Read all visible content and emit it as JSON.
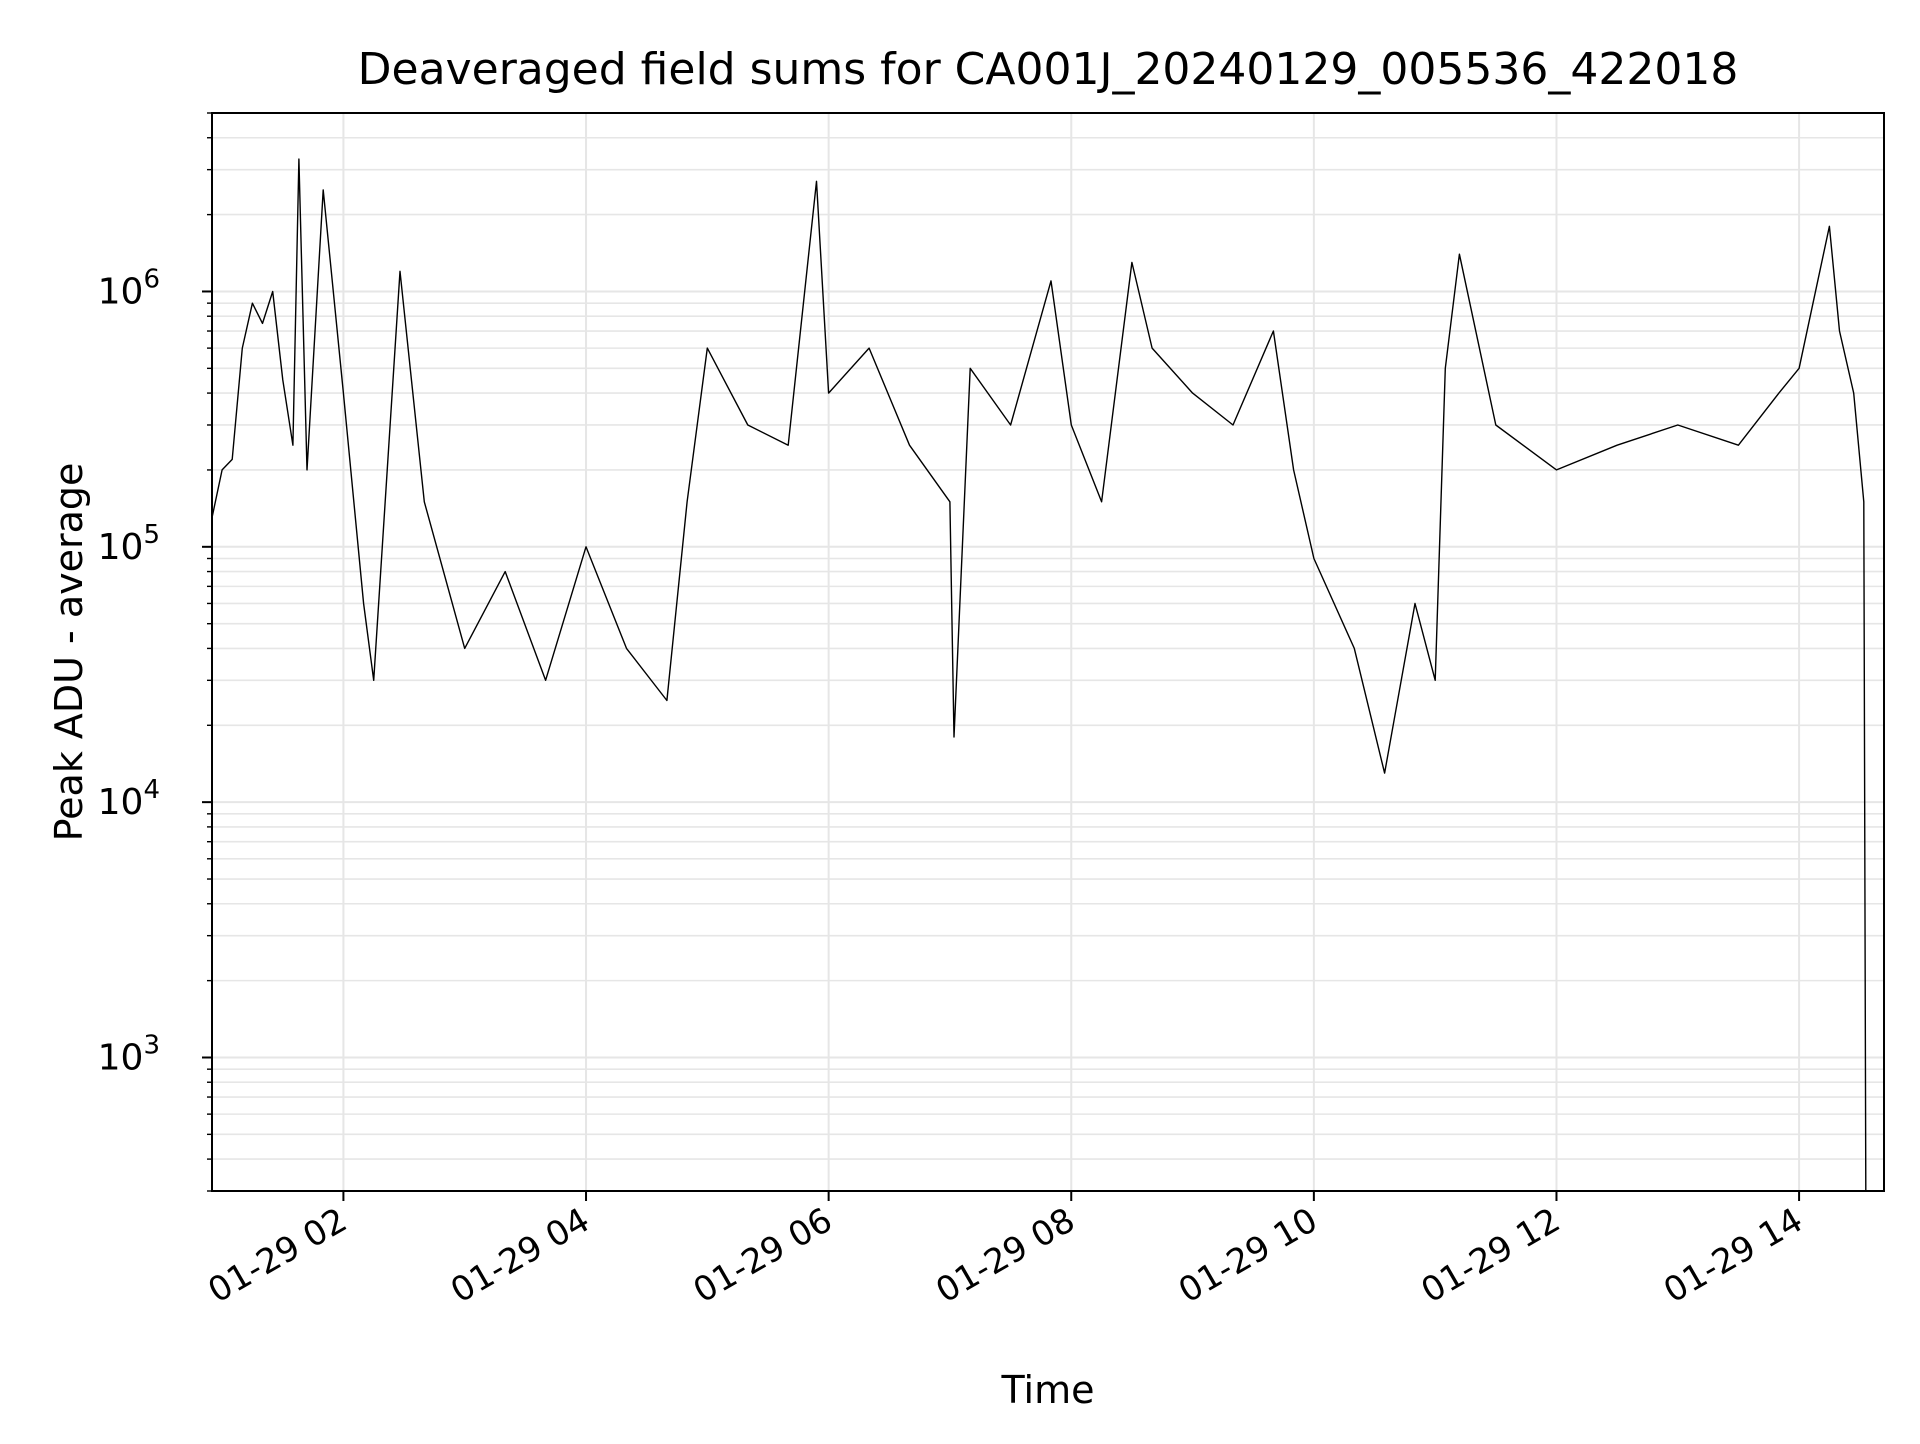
{
  "chart_data": {
    "type": "line",
    "title": "Deaveraged field sums for CA001J_20240129_005536_422018",
    "xlabel": "Time",
    "ylabel": "Peak ADU - average",
    "y_scale": "log",
    "ylim": [
      300,
      5000000
    ],
    "xlim": [
      "2024-01-29 00:55",
      "2024-01-29 14:42"
    ],
    "grid": true,
    "grid_minor_y": true,
    "line_color": "#000000",
    "grid_color": "#e6e6e6",
    "x_ticks": [
      {
        "value": "2024-01-29 02:00",
        "label": "01-29 02"
      },
      {
        "value": "2024-01-29 04:00",
        "label": "01-29 04"
      },
      {
        "value": "2024-01-29 06:00",
        "label": "01-29 06"
      },
      {
        "value": "2024-01-29 08:00",
        "label": "01-29 08"
      },
      {
        "value": "2024-01-29 10:00",
        "label": "01-29 10"
      },
      {
        "value": "2024-01-29 12:00",
        "label": "01-29 12"
      },
      {
        "value": "2024-01-29 14:00",
        "label": "01-29 14"
      }
    ],
    "y_ticks": [
      {
        "value": 1000,
        "base": "10",
        "exp": "3"
      },
      {
        "value": 10000,
        "base": "10",
        "exp": "4"
      },
      {
        "value": 100000,
        "base": "10",
        "exp": "5"
      },
      {
        "value": 1000000,
        "base": "10",
        "exp": "6"
      }
    ],
    "series": [
      {
        "values": [
          [
            "2024-01-29 00:55",
            130000
          ],
          [
            "2024-01-29 01:00",
            200000
          ],
          [
            "2024-01-29 01:05",
            220000
          ],
          [
            "2024-01-29 01:10",
            600000
          ],
          [
            "2024-01-29 01:15",
            900000
          ],
          [
            "2024-01-29 01:20",
            750000
          ],
          [
            "2024-01-29 01:25",
            1000000
          ],
          [
            "2024-01-29 01:30",
            450000
          ],
          [
            "2024-01-29 01:35",
            250000
          ],
          [
            "2024-01-29 01:38",
            3300000
          ],
          [
            "2024-01-29 01:42",
            200000
          ],
          [
            "2024-01-29 01:50",
            2500000
          ],
          [
            "2024-01-29 02:00",
            400000
          ],
          [
            "2024-01-29 02:10",
            60000
          ],
          [
            "2024-01-29 02:15",
            30000
          ],
          [
            "2024-01-29 02:28",
            1200000
          ],
          [
            "2024-01-29 02:40",
            150000
          ],
          [
            "2024-01-29 03:00",
            40000
          ],
          [
            "2024-01-29 03:20",
            80000
          ],
          [
            "2024-01-29 03:40",
            30000
          ],
          [
            "2024-01-29 04:00",
            100000
          ],
          [
            "2024-01-29 04:20",
            40000
          ],
          [
            "2024-01-29 04:40",
            25000
          ],
          [
            "2024-01-29 04:50",
            150000
          ],
          [
            "2024-01-29 05:00",
            600000
          ],
          [
            "2024-01-29 05:20",
            300000
          ],
          [
            "2024-01-29 05:40",
            250000
          ],
          [
            "2024-01-29 05:54",
            2700000
          ],
          [
            "2024-01-29 06:00",
            400000
          ],
          [
            "2024-01-29 06:20",
            600000
          ],
          [
            "2024-01-29 06:40",
            250000
          ],
          [
            "2024-01-29 07:00",
            150000
          ],
          [
            "2024-01-29 07:02",
            18000
          ],
          [
            "2024-01-29 07:10",
            500000
          ],
          [
            "2024-01-29 07:30",
            300000
          ],
          [
            "2024-01-29 07:50",
            1100000
          ],
          [
            "2024-01-29 08:00",
            300000
          ],
          [
            "2024-01-29 08:15",
            150000
          ],
          [
            "2024-01-29 08:30",
            1300000
          ],
          [
            "2024-01-29 08:40",
            600000
          ],
          [
            "2024-01-29 09:00",
            400000
          ],
          [
            "2024-01-29 09:20",
            300000
          ],
          [
            "2024-01-29 09:40",
            700000
          ],
          [
            "2024-01-29 09:50",
            200000
          ],
          [
            "2024-01-29 10:00",
            90000
          ],
          [
            "2024-01-29 10:20",
            40000
          ],
          [
            "2024-01-29 10:35",
            13000
          ],
          [
            "2024-01-29 10:50",
            60000
          ],
          [
            "2024-01-29 11:00",
            30000
          ],
          [
            "2024-01-29 11:05",
            500000
          ],
          [
            "2024-01-29 11:12",
            1400000
          ],
          [
            "2024-01-29 11:30",
            300000
          ],
          [
            "2024-01-29 12:00",
            200000
          ],
          [
            "2024-01-29 12:30",
            250000
          ],
          [
            "2024-01-29 13:00",
            300000
          ],
          [
            "2024-01-29 13:30",
            250000
          ],
          [
            "2024-01-29 13:50",
            400000
          ],
          [
            "2024-01-29 14:00",
            500000
          ],
          [
            "2024-01-29 14:15",
            1800000
          ],
          [
            "2024-01-29 14:20",
            700000
          ],
          [
            "2024-01-29 14:27",
            400000
          ],
          [
            "2024-01-29 14:32",
            150000
          ],
          [
            "2024-01-29 14:33",
            300
          ]
        ]
      }
    ]
  }
}
